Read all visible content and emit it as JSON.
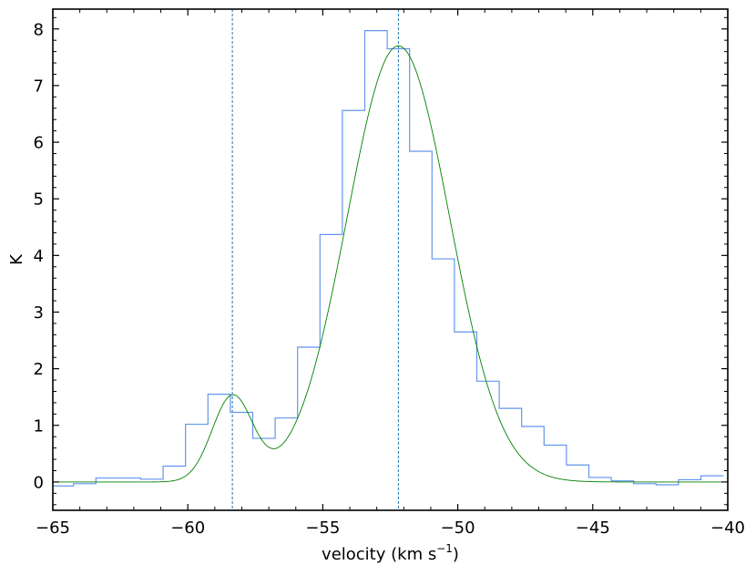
{
  "chart_data": {
    "type": "line",
    "xlabel": "velocity (km s",
    "xlabel_sup": "−1",
    "xlabel_close": ")",
    "ylabel": "K",
    "xlim": [
      -65,
      -40
    ],
    "ylim": [
      -0.5,
      8.35
    ],
    "grid": false,
    "x_ticks": [
      -65,
      -60,
      -55,
      -50,
      -45,
      -40
    ],
    "x_tick_labels": [
      "−65",
      "−60",
      "−55",
      "−50",
      "−45",
      "−40"
    ],
    "y_ticks": [
      0,
      1,
      2,
      3,
      4,
      5,
      6,
      7,
      8
    ],
    "y_tick_labels": [
      "0",
      "1",
      "2",
      "3",
      "4",
      "5",
      "6",
      "7",
      "8"
    ],
    "vertical_lines": [
      -58.35,
      -52.2
    ],
    "series": [
      {
        "kind": "step-histogram",
        "color": "#6495ed",
        "bin_width": 0.83,
        "bin_centers": [
          -64.65,
          -63.82,
          -62.99,
          -62.16,
          -61.33,
          -60.5,
          -59.67,
          -58.84,
          -58.01,
          -57.18,
          -56.35,
          -55.52,
          -54.69,
          -53.86,
          -53.03,
          -52.2,
          -51.37,
          -50.54,
          -49.71,
          -48.88,
          -48.05,
          -47.22,
          -46.39,
          -45.56,
          -44.73,
          -43.9,
          -43.07,
          -42.24,
          -41.41,
          -40.58
        ],
        "values": [
          -0.07,
          -0.03,
          0.07,
          0.07,
          0.05,
          0.28,
          1.02,
          1.55,
          1.23,
          0.77,
          1.13,
          2.38,
          4.37,
          6.56,
          7.97,
          7.65,
          5.84,
          3.94,
          2.65,
          1.78,
          1.3,
          0.98,
          0.65,
          0.3,
          0.08,
          0.02,
          -0.03,
          -0.05,
          0.04,
          0.11
        ]
      },
      {
        "kind": "gaussian-fit",
        "color": "#008000",
        "components": [
          {
            "amplitude": 1.5,
            "center": -58.35,
            "sigma": 0.75
          },
          {
            "amplitude": 7.7,
            "center": -52.2,
            "sigma": 1.9
          }
        ]
      }
    ]
  }
}
